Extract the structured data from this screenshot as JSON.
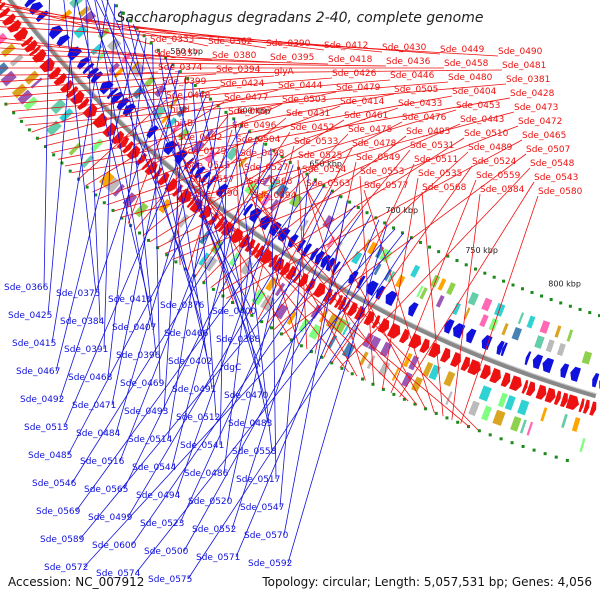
{
  "title": "Saccharophagus degradans 2-40, complete genome",
  "accession": "Accession: NC_007912",
  "summary": "Topology: circular; Length: 5,057,531 bp; Genes: 4,056",
  "colors": {
    "forward": "#ee1111",
    "reverse": "#1111dd",
    "backbone": "#888888",
    "ticks": "#1a8a1a"
  },
  "scale_ticks": [
    "400 kbp",
    "450 kbp",
    "500 kbp",
    "550 kbp",
    "600 kbp",
    "650 kbp",
    "700 kbp",
    "750 kbp",
    "800 kbp"
  ],
  "forward_labels": [
    "Sde_0333",
    "Sde_0362",
    "Sde_0390",
    "Sde_0412",
    "Sde_0430",
    "Sde_0449",
    "Sde_0490",
    "Sde_0357",
    "Sde_0380",
    "Sde_0395",
    "Sde_0418",
    "Sde_0436",
    "Sde_0458",
    "Sde_0481",
    "Sde_0374",
    "Sde_0394",
    "glyA",
    "Sde_0426",
    "Sde_0446",
    "Sde_0480",
    "Sde_0381",
    "Sde_0399",
    "Sde_0424",
    "Sde_0444",
    "Sde_0479",
    "Sde_0505",
    "Sde_0404",
    "Sde_0428",
    "Sde_0448",
    "Sde_0477",
    "Sde_0503",
    "Sde_0414",
    "Sde_0433",
    "Sde_0453",
    "Sde_0473",
    "hisH",
    "Sde_0497",
    "Sde_0431",
    "Sde_0461",
    "Sde_0476",
    "Sde_0443",
    "Sde_0472",
    "hisB",
    "Sde_0496",
    "Sde_0452",
    "Sde_0475",
    "Sde_0495",
    "Sde_0510",
    "Sde_0465",
    "Sde_0482",
    "Sde_0504",
    "Sde_0533",
    "Sde_0478",
    "Sde_0531",
    "Sde_0489",
    "Sde_0507",
    "Sde_0529",
    "Sde_0498",
    "Sde_0525",
    "Sde_0549",
    "Sde_0511",
    "Sde_0524",
    "Sde_0548",
    "Sde_0515",
    "Sde_0527",
    "Sde_0554",
    "Sde_0553",
    "Sde_0535",
    "Sde_0559",
    "Sde_0543",
    "Sde_0557",
    "Sde_0566",
    "Sde_0563",
    "Sde_0577",
    "Sde_0568",
    "Sde_0584",
    "Sde_0580",
    "Sde_0590",
    "Sde_0594"
  ],
  "reverse_labels": [
    "Sde_0366",
    "Sde_0375",
    "Sde_0416",
    "Sde_0376",
    "Sde_0400",
    "Sde_0425",
    "Sde_0384",
    "Sde_0407",
    "Sde_0466",
    "Sde_0388",
    "Sde_0415",
    "Sde_0391",
    "Sde_0396",
    "Sde_0402",
    "rdgC",
    "Sde_0467",
    "Sde_0468",
    "Sde_0469",
    "Sde_0491",
    "Sde_0470",
    "Sde_0492",
    "Sde_0471",
    "Sde_0493",
    "Sde_0512",
    "Sde_0483",
    "Sde_0513",
    "Sde_0484",
    "Sde_0514",
    "Sde_0541",
    "Sde_0558",
    "Sde_0485",
    "Sde_0516",
    "Sde_0544",
    "Sde_0486",
    "Sde_0517",
    "Sde_0546",
    "Sde_0565",
    "Sde_0494",
    "Sde_0520",
    "Sde_0547",
    "Sde_0569",
    "Sde_0499",
    "Sde_0523",
    "Sde_0552",
    "Sde_0570",
    "Sde_0589",
    "Sde_0600",
    "Sde_0500",
    "Sde_0571",
    "Sde_0592",
    "Sde_0572",
    "Sde_0574",
    "Sde_0575"
  ]
}
